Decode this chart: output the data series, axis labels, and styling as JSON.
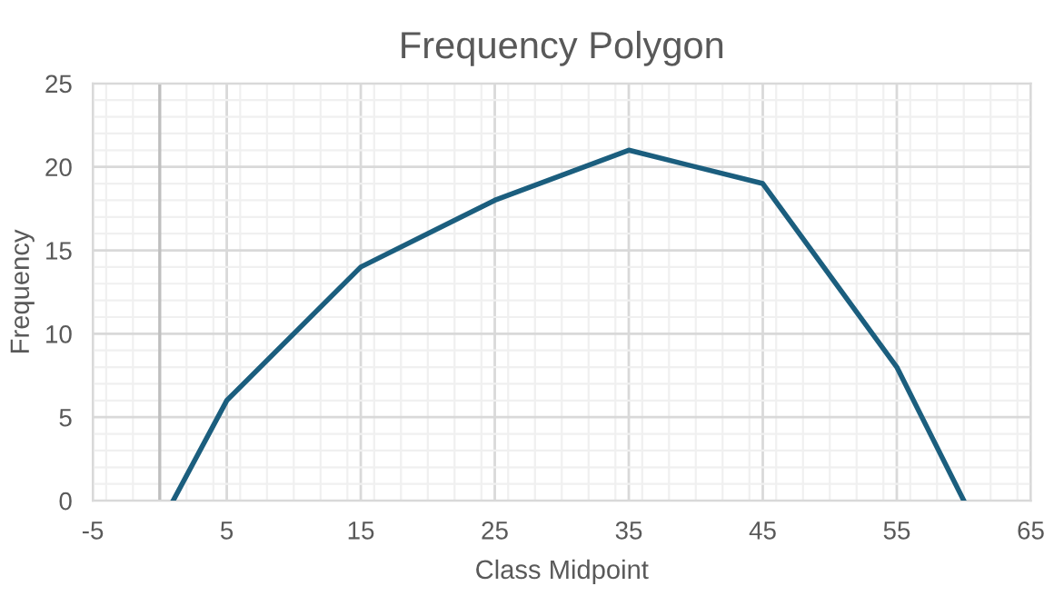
{
  "chart_data": {
    "type": "line",
    "title": "Frequency Polygon",
    "xlabel": "Class Midpoint",
    "ylabel": "Frequency",
    "x": [
      1,
      5,
      15,
      25,
      35,
      45,
      55,
      60
    ],
    "series": [
      {
        "color": "#1b5e7e",
        "values": [
          0,
          6,
          14,
          18,
          21,
          19,
          8,
          0
        ]
      }
    ],
    "xlim": [
      -5,
      65
    ],
    "xticks": [
      -5,
      5,
      15,
      25,
      35,
      45,
      55,
      65
    ],
    "ylim": [
      0,
      25
    ],
    "yticks": [
      0,
      5,
      10,
      15,
      20,
      25
    ],
    "ref_lines": [
      {
        "axis": "x",
        "value": 0,
        "color": "#bfbfbf"
      }
    ],
    "grid": true,
    "marker": "none",
    "line_style": "solid",
    "legend": false
  }
}
